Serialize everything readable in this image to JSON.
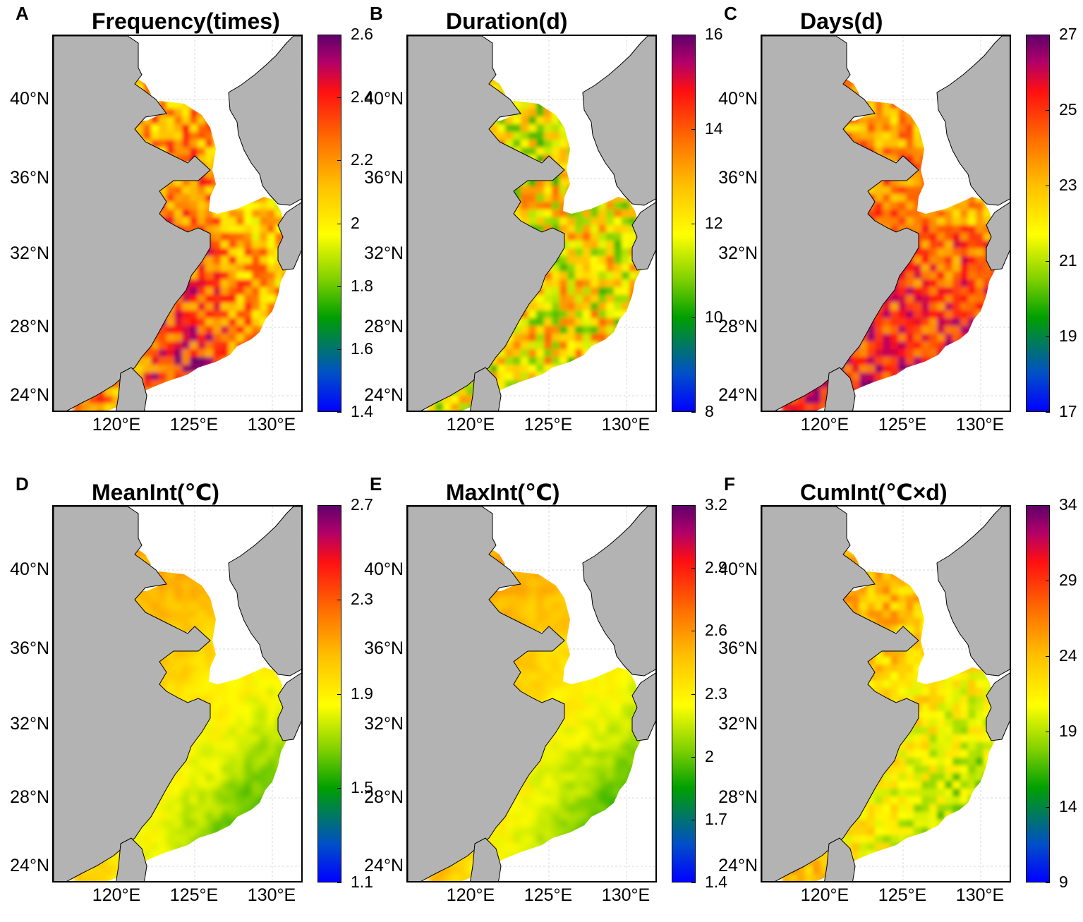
{
  "colors": {
    "land": "#b3b3b3",
    "grid": "#d9d9d9",
    "coast": "#000000"
  },
  "panels": [
    {
      "letter": "A",
      "title": "Frequency(times)",
      "lat_labels": [
        "40°N",
        "36°N",
        "32°N",
        "28°N",
        "24°N"
      ],
      "lon_labels": [
        "120°E",
        "125°E",
        "130°E"
      ],
      "colorbar": {
        "ticks": [
          "2.6",
          "2.4",
          "2.2",
          "2",
          "1.8",
          "1.6",
          "1.4"
        ],
        "min": 1.4,
        "max": 2.6
      },
      "pattern": "warm-south"
    },
    {
      "letter": "B",
      "title": "Duration(d)",
      "lat_labels": [
        "40°N",
        "36°N",
        "32°N",
        "28°N",
        "24°N"
      ],
      "lon_labels": [
        "120°E",
        "125°E",
        "130°E"
      ],
      "colorbar": {
        "ticks": [
          "16",
          "14",
          "12",
          "10",
          "8"
        ],
        "min": 8,
        "max": 16
      },
      "pattern": "mixed"
    },
    {
      "letter": "C",
      "title": "Days(d)",
      "lat_labels": [
        "40°N",
        "36°N",
        "32°N",
        "28°N",
        "24°N"
      ],
      "lon_labels": [
        "120°E",
        "125°E",
        "130°E"
      ],
      "colorbar": {
        "ticks": [
          "27",
          "25",
          "23",
          "21",
          "19",
          "17"
        ],
        "min": 17,
        "max": 27
      },
      "pattern": "hot-south"
    },
    {
      "letter": "D",
      "title": "MeanInt(℃)",
      "lat_labels": [
        "40°N",
        "36°N",
        "32°N",
        "28°N",
        "24°N"
      ],
      "lon_labels": [
        "120°E",
        "125°E",
        "130°E"
      ],
      "colorbar": {
        "ticks": [
          "2.7",
          "2.3",
          "1.9",
          "1.5",
          "1.1"
        ],
        "min": 1.1,
        "max": 2.7
      },
      "pattern": "smooth-north"
    },
    {
      "letter": "E",
      "title": "MaxInt(℃)",
      "lat_labels": [
        "40°N",
        "36°N",
        "32°N",
        "28°N",
        "24°N"
      ],
      "lon_labels": [
        "120°E",
        "125°E",
        "130°E"
      ],
      "colorbar": {
        "ticks": [
          "3.2",
          "2.9",
          "2.6",
          "2.3",
          "2",
          "1.7",
          "1.4"
        ],
        "min": 1.4,
        "max": 3.2
      },
      "pattern": "smooth-north"
    },
    {
      "letter": "F",
      "title": "CumInt(℃×d)",
      "lat_labels": [
        "40°N",
        "36°N",
        "32°N",
        "28°N",
        "24°N"
      ],
      "lon_labels": [
        "120°E",
        "125°E",
        "130°E"
      ],
      "colorbar": {
        "ticks": [
          "34",
          "29",
          "24",
          "19",
          "14",
          "9"
        ],
        "min": 9,
        "max": 34
      },
      "pattern": "smooth-north-speckled"
    }
  ]
}
